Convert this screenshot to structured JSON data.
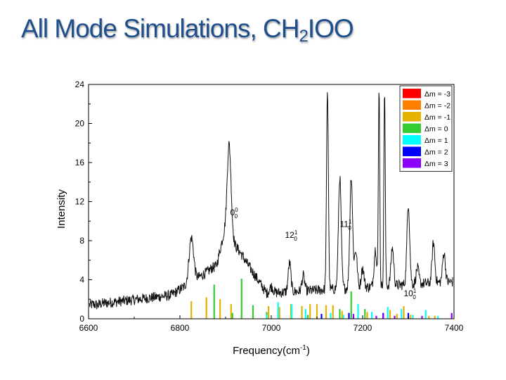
{
  "slide": {
    "title_main": "All Mode Simulations, CH",
    "title_sub": "2",
    "title_tail": "IOO"
  },
  "chart_data": {
    "type": "line",
    "title": "",
    "xlabel": "Frequency(cm-1)",
    "xlabel_main": "Frequency(cm",
    "xlabel_sup": "-1",
    "xlabel_end": ")",
    "ylabel": "Intensity",
    "xlim": [
      6600,
      7400
    ],
    "ylim": [
      0,
      24
    ],
    "xticks": [
      6600,
      6800,
      7000,
      7200,
      7400
    ],
    "yticks": [
      0,
      4,
      8,
      12,
      16,
      20,
      24
    ],
    "grid": false,
    "legend_position": "top-right",
    "legend": [
      {
        "label": "Δm = -3",
        "color": "#ff0000"
      },
      {
        "label": "Δm = -2",
        "color": "#ff7f00"
      },
      {
        "label": "Δm = -1",
        "color": "#e6b100"
      },
      {
        "label": "Δm = 0",
        "color": "#33cc33"
      },
      {
        "label": "Δm = 1",
        "color": "#00ffff"
      },
      {
        "label": "Δm = 2",
        "color": "#0000ff"
      },
      {
        "label": "Δm = 3",
        "color": "#8b00ff"
      }
    ],
    "annotations": [
      {
        "text": "0",
        "sup": "0",
        "sub": "0",
        "x": 6910,
        "y": 10.6
      },
      {
        "text": "12",
        "sup": "1",
        "sub": "0",
        "x": 7030,
        "y": 8.3
      },
      {
        "text": "11",
        "sup": "1",
        "sub": "0",
        "x": 7150,
        "y": 9.4
      },
      {
        "text": "10",
        "sup": "1",
        "sub": "0",
        "x": 7290,
        "y": 2.3
      }
    ],
    "experimental_peaks": [
      [
        6620,
        1.4,
        3
      ],
      [
        6825,
        8.3,
        5
      ],
      [
        6870,
        5.2,
        4
      ],
      [
        6908,
        17.8,
        4
      ],
      [
        6935,
        6.6,
        4
      ],
      [
        7000,
        3.3,
        4
      ],
      [
        7040,
        5.7,
        3
      ],
      [
        7070,
        4.4,
        3
      ],
      [
        7123,
        23.5,
        2
      ],
      [
        7150,
        14.5,
        3
      ],
      [
        7175,
        14.6,
        3
      ],
      [
        7185,
        7.0,
        3
      ],
      [
        7200,
        5.2,
        3
      ],
      [
        7228,
        7.1,
        3
      ],
      [
        7236,
        23.5,
        1.5
      ],
      [
        7248,
        23.5,
        1.5
      ],
      [
        7265,
        7.3,
        3
      ],
      [
        7300,
        11.8,
        3
      ],
      [
        7320,
        5.2,
        3
      ],
      [
        7355,
        7.8,
        3
      ],
      [
        7378,
        6.8,
        3
      ]
    ],
    "series": [
      {
        "name": "Δm = -1",
        "color": "#e6b100",
        "x": [
          6825,
          6858,
          6888,
          6912,
          6994,
          7018,
          7043,
          7067,
          7085,
          7100,
          7120,
          7135,
          7155,
          7210,
          7260,
          7275,
          7290,
          7305,
          7345,
          7358
        ],
        "y": [
          1.8,
          2.2,
          2.0,
          1.5,
          1.3,
          1.2,
          1.5,
          1.3,
          1.5,
          1.5,
          1.4,
          1.4,
          0.8,
          0.7,
          0.9,
          0.5,
          1.3,
          0.4,
          0.3,
          0.3
        ]
      },
      {
        "name": "Δm = 0",
        "color": "#33cc33",
        "x": [
          6875,
          6915,
          6935,
          6960,
          6990,
          7080,
          7150,
          7175,
          7205
        ],
        "y": [
          3.5,
          0.6,
          4.1,
          1.4,
          0.7,
          0.4,
          1.0,
          2.8,
          1.0
        ]
      },
      {
        "name": "Δm = 1",
        "color": "#00ffff",
        "x": [
          6990,
          7015,
          7045,
          7075,
          7130,
          7158,
          7190,
          7220,
          7255,
          7285,
          7310,
          7338,
          7365
        ],
        "y": [
          0.4,
          1.7,
          1.5,
          1.0,
          0.6,
          0.4,
          1.5,
          0.7,
          1.2,
          1.0,
          0.4,
          0.9,
          0.3
        ]
      },
      {
        "name": "Δm = 2",
        "color": "#0000ff",
        "x": [
          7110,
          7170,
          7245,
          7300
        ],
        "y": [
          0.5,
          0.6,
          0.6,
          0.6
        ]
      },
      {
        "name": "Δm = 3",
        "color": "#8b00ff",
        "x": [
          7180,
          7230,
          7245,
          7270,
          7330,
          7395
        ],
        "y": [
          0.5,
          0.3,
          0.5,
          0.3,
          0.3,
          0.6
        ]
      }
    ]
  }
}
